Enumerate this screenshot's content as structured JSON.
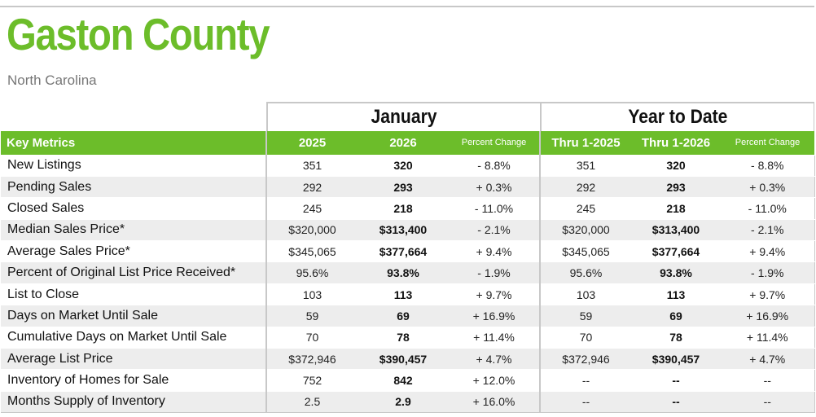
{
  "header": {
    "title": "Gaston County",
    "subtitle": "North Carolina"
  },
  "groups": {
    "january": "January",
    "ytd": "Year to Date"
  },
  "columns": {
    "metric": "Key Metrics",
    "jan_prev": "2025",
    "jan_curr": "2026",
    "jan_pct": "Percent Change",
    "ytd_prev": "Thru 1-2025",
    "ytd_curr": "Thru 1-2026",
    "ytd_pct": "Percent Change"
  },
  "rows": [
    {
      "label": "New Listings",
      "jan_prev": "351",
      "jan_curr": "320",
      "jan_pct": "- 8.8%",
      "ytd_prev": "351",
      "ytd_curr": "320",
      "ytd_pct": "- 8.8%"
    },
    {
      "label": "Pending Sales",
      "jan_prev": "292",
      "jan_curr": "293",
      "jan_pct": "+ 0.3%",
      "ytd_prev": "292",
      "ytd_curr": "293",
      "ytd_pct": "+ 0.3%"
    },
    {
      "label": "Closed Sales",
      "jan_prev": "245",
      "jan_curr": "218",
      "jan_pct": "- 11.0%",
      "ytd_prev": "245",
      "ytd_curr": "218",
      "ytd_pct": "- 11.0%"
    },
    {
      "label": "Median Sales Price*",
      "jan_prev": "$320,000",
      "jan_curr": "$313,400",
      "jan_pct": "- 2.1%",
      "ytd_prev": "$320,000",
      "ytd_curr": "$313,400",
      "ytd_pct": "- 2.1%"
    },
    {
      "label": "Average Sales Price*",
      "jan_prev": "$345,065",
      "jan_curr": "$377,664",
      "jan_pct": "+ 9.4%",
      "ytd_prev": "$345,065",
      "ytd_curr": "$377,664",
      "ytd_pct": "+ 9.4%"
    },
    {
      "label": "Percent of Original List Price Received*",
      "jan_prev": "95.6%",
      "jan_curr": "93.8%",
      "jan_pct": "- 1.9%",
      "ytd_prev": "95.6%",
      "ytd_curr": "93.8%",
      "ytd_pct": "- 1.9%"
    },
    {
      "label": "List to Close",
      "jan_prev": "103",
      "jan_curr": "113",
      "jan_pct": "+ 9.7%",
      "ytd_prev": "103",
      "ytd_curr": "113",
      "ytd_pct": "+ 9.7%"
    },
    {
      "label": "Days on Market Until Sale",
      "jan_prev": "59",
      "jan_curr": "69",
      "jan_pct": "+ 16.9%",
      "ytd_prev": "59",
      "ytd_curr": "69",
      "ytd_pct": "+ 16.9%"
    },
    {
      "label": "Cumulative Days on Market Until Sale",
      "jan_prev": "70",
      "jan_curr": "78",
      "jan_pct": "+ 11.4%",
      "ytd_prev": "70",
      "ytd_curr": "78",
      "ytd_pct": "+ 11.4%"
    },
    {
      "label": "Average List Price",
      "jan_prev": "$372,946",
      "jan_curr": "$390,457",
      "jan_pct": "+ 4.7%",
      "ytd_prev": "$372,946",
      "ytd_curr": "$390,457",
      "ytd_pct": "+ 4.7%"
    },
    {
      "label": "Inventory of Homes for Sale",
      "jan_prev": "752",
      "jan_curr": "842",
      "jan_pct": "+ 12.0%",
      "ytd_prev": "--",
      "ytd_curr": "--",
      "ytd_pct": "--"
    },
    {
      "label": "Months Supply of Inventory",
      "jan_prev": "2.5",
      "jan_curr": "2.9",
      "jan_pct": "+ 16.0%",
      "ytd_prev": "--",
      "ytd_curr": "--",
      "ytd_pct": "--"
    }
  ],
  "colors": {
    "brand_green": "#6cbd2a",
    "row_shade": "#ededed",
    "rule_gray": "#c8c8c8"
  }
}
